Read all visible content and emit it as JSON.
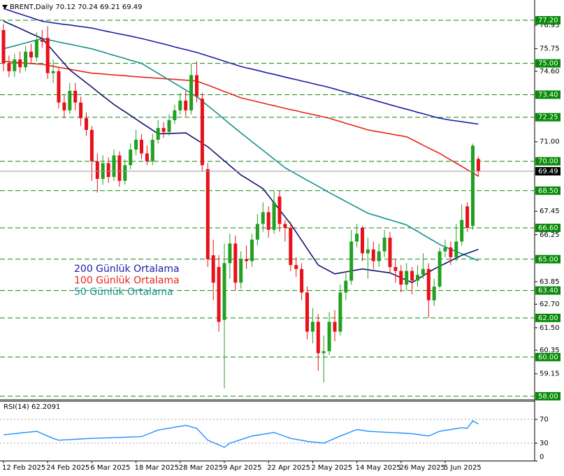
{
  "chart_data": [
    {
      "type": "candlestick",
      "title": "BRENT,Daily",
      "categories": [
        "12 Feb 2025",
        null,
        null,
        null,
        null,
        null,
        null,
        null,
        "24 Feb 2025",
        null,
        null,
        null,
        null,
        null,
        null,
        null,
        "6 Mar 2025",
        null,
        null,
        null,
        null,
        null,
        null,
        null,
        "18 Mar 2025",
        null,
        null,
        null,
        null,
        null,
        null,
        null,
        "28 Mar 2025",
        null,
        null,
        null,
        null,
        null,
        null,
        null,
        "9 Apr 2025",
        null,
        null,
        null,
        null,
        null,
        null,
        null,
        "22 Apr 2025",
        null,
        null,
        null,
        null,
        null,
        null,
        null,
        "2 May 2025",
        null,
        null,
        null,
        null,
        null,
        null,
        null,
        "14 May 2025",
        null,
        null,
        null,
        null,
        null,
        null,
        null,
        "26 May 2025",
        null,
        null,
        null,
        null,
        null,
        null,
        null,
        "5 Jun 2025",
        null,
        null,
        null,
        null,
        null,
        null
      ],
      "open": [
        76.7,
        75.0,
        74.6,
        75.2,
        74.8,
        75.6,
        75.3,
        76.2,
        76.3,
        74.5,
        74.6,
        73.0,
        72.6,
        73.6,
        73.0,
        72.2,
        71.6,
        70.0,
        69.1,
        69.9,
        69.2,
        70.3,
        69.0,
        69.8,
        70.6,
        71.1,
        70.4,
        70.0,
        71.1,
        71.7,
        71.5,
        72.1,
        72.6,
        73.1,
        72.6,
        74.4,
        73.2,
        69.6,
        65.2,
        64.6,
        61.9,
        64.8,
        65.8,
        63.8,
        65.0,
        64.9,
        66.0,
        66.8,
        67.4,
        66.5,
        68.2,
        66.8,
        66.6,
        64.7,
        64.5,
        63.3,
        61.3,
        61.8,
        60.2,
        60.3,
        61.8,
        61.3,
        63.3,
        63.9,
        65.9,
        66.6,
        65.3,
        65.5,
        64.9,
        65.4,
        66.1,
        64.6,
        64.4,
        63.7,
        64.4,
        63.9,
        64.2,
        64.5,
        62.9,
        63.6,
        65.4,
        65.6,
        65.1,
        65.9,
        67.7,
        66.7,
        70.12
      ],
      "high": [
        77.0,
        75.4,
        75.5,
        75.6,
        75.9,
        76.0,
        76.6,
        76.7,
        76.9,
        75.2,
        74.8,
        73.4,
        74.0,
        74.0,
        73.3,
        72.5,
        71.8,
        70.4,
        70.3,
        70.2,
        70.6,
        70.5,
        70.1,
        70.9,
        71.6,
        71.4,
        70.8,
        71.4,
        72.1,
        72.0,
        72.4,
        72.9,
        73.5,
        73.6,
        75.0,
        75.1,
        73.5,
        69.9,
        66.0,
        65.2,
        65.8,
        66.3,
        66.2,
        65.4,
        65.7,
        66.3,
        67.3,
        67.9,
        67.7,
        68.5,
        68.5,
        67.0,
        66.9,
        65.1,
        64.8,
        63.6,
        62.5,
        62.2,
        61.1,
        62.3,
        62.4,
        63.7,
        64.3,
        66.5,
        66.8,
        66.7,
        66.1,
        65.9,
        65.8,
        66.5,
        66.4,
        65.0,
        64.7,
        64.8,
        64.6,
        64.7,
        65.3,
        64.8,
        64.0,
        65.6,
        66.0,
        65.9,
        66.8,
        67.8,
        67.9,
        70.9,
        70.24
      ],
      "low": [
        74.6,
        74.3,
        74.3,
        74.5,
        74.6,
        75.0,
        75.1,
        75.8,
        74.2,
        74.0,
        72.7,
        72.2,
        72.4,
        72.6,
        71.8,
        71.3,
        69.0,
        68.4,
        68.8,
        68.9,
        69.0,
        68.7,
        68.8,
        69.6,
        70.3,
        70.1,
        69.8,
        69.8,
        70.9,
        71.2,
        71.3,
        71.9,
        72.4,
        72.3,
        72.4,
        73.0,
        69.5,
        64.6,
        62.9,
        61.3,
        58.4,
        64.0,
        63.4,
        63.5,
        64.5,
        64.6,
        65.7,
        66.4,
        66.1,
        66.3,
        66.4,
        65.9,
        64.4,
        64.1,
        62.9,
        60.9,
        60.7,
        59.3,
        58.7,
        60.1,
        60.8,
        61.1,
        62.9,
        63.7,
        65.6,
        64.9,
        64.0,
        64.5,
        64.6,
        65.1,
        64.3,
        63.8,
        63.3,
        63.4,
        63.2,
        63.6,
        64.0,
        62.0,
        62.6,
        63.5,
        65.1,
        64.7,
        64.9,
        65.7,
        66.4,
        66.5,
        69.21
      ],
      "close": [
        75.0,
        74.6,
        75.2,
        74.8,
        75.6,
        75.3,
        76.2,
        76.1,
        74.5,
        74.6,
        73.0,
        72.6,
        73.6,
        73.0,
        72.2,
        71.6,
        70.0,
        69.1,
        69.9,
        69.2,
        70.3,
        69.0,
        69.8,
        70.6,
        71.1,
        70.4,
        70.0,
        71.1,
        71.7,
        71.5,
        72.1,
        72.6,
        73.1,
        72.6,
        74.4,
        73.3,
        69.8,
        65.0,
        63.8,
        61.8,
        64.8,
        65.8,
        63.8,
        65.0,
        64.9,
        66.0,
        66.8,
        67.4,
        66.5,
        67.9,
        66.8,
        66.6,
        64.7,
        64.5,
        63.3,
        61.3,
        61.8,
        60.2,
        60.3,
        61.8,
        61.3,
        63.3,
        63.9,
        65.9,
        66.3,
        65.3,
        65.5,
        64.9,
        65.4,
        66.1,
        64.6,
        64.4,
        63.7,
        64.4,
        63.9,
        64.2,
        64.5,
        62.9,
        63.6,
        65.4,
        65.6,
        65.1,
        65.9,
        67.0,
        66.6,
        70.8,
        69.49
      ],
      "up_color": "#21a021",
      "down_color": "#e8101a",
      "series": [
        {
          "name": "200 Günlük Ortalama",
          "color": "#1c1ca8",
          "values": [
            77.8,
            77.71,
            77.61,
            77.52,
            77.43,
            77.34,
            77.24,
            77.15,
            77.11,
            77.07,
            77.03,
            76.99,
            76.96,
            76.92,
            76.88,
            76.84,
            76.8,
            76.74,
            76.68,
            76.62,
            76.56,
            76.5,
            76.45,
            76.39,
            76.33,
            76.27,
            76.2,
            76.13,
            76.06,
            75.99,
            75.92,
            75.84,
            75.77,
            75.7,
            75.63,
            75.56,
            75.47,
            75.38,
            75.29,
            75.2,
            75.11,
            75.02,
            74.93,
            74.84,
            74.77,
            74.71,
            74.64,
            74.57,
            74.5,
            74.44,
            74.37,
            74.3,
            74.23,
            74.17,
            74.1,
            74.04,
            73.97,
            73.9,
            73.84,
            73.77,
            73.69,
            73.61,
            73.53,
            73.45,
            73.37,
            73.29,
            73.21,
            73.13,
            73.05,
            72.97,
            72.89,
            72.81,
            72.73,
            72.66,
            72.58,
            72.5,
            72.43,
            72.35,
            72.27,
            72.2,
            72.15,
            72.1,
            72.06,
            72.02,
            71.98,
            71.94,
            71.9
          ]
        },
        {
          "name": "100 Günlük Ortalama",
          "color": "#e8231a",
          "values": [
            75.1,
            75.08,
            75.06,
            75.04,
            75.01,
            74.99,
            74.97,
            74.95,
            74.9,
            74.85,
            74.8,
            74.75,
            74.7,
            74.65,
            74.6,
            74.55,
            74.5,
            74.48,
            74.46,
            74.43,
            74.41,
            74.39,
            74.37,
            74.34,
            74.32,
            74.3,
            74.28,
            74.26,
            74.24,
            74.22,
            74.2,
            74.18,
            74.16,
            74.14,
            74.12,
            74.1,
            73.99,
            73.89,
            73.78,
            73.67,
            73.56,
            73.46,
            73.35,
            73.24,
            73.17,
            73.11,
            73.04,
            72.97,
            72.9,
            72.84,
            72.77,
            72.7,
            72.64,
            72.58,
            72.51,
            72.45,
            72.39,
            72.33,
            72.26,
            72.2,
            72.11,
            72.03,
            71.94,
            71.86,
            71.77,
            71.69,
            71.6,
            71.55,
            71.5,
            71.45,
            71.4,
            71.35,
            71.3,
            71.25,
            71.11,
            70.97,
            70.82,
            70.68,
            70.54,
            70.4,
            70.23,
            70.07,
            69.9,
            69.74,
            69.57,
            69.41,
            69.24
          ]
        },
        {
          "name": "50 Günlük Ortalama",
          "color": "#16908a",
          "values": [
            75.74,
            75.82,
            75.89,
            75.97,
            76.04,
            76.12,
            76.19,
            76.27,
            76.21,
            76.15,
            76.09,
            76.03,
            75.98,
            75.92,
            75.86,
            75.8,
            75.74,
            75.66,
            75.58,
            75.49,
            75.41,
            75.33,
            75.25,
            75.16,
            75.08,
            75.0,
            74.83,
            74.66,
            74.49,
            74.32,
            74.15,
            73.98,
            73.81,
            73.64,
            73.47,
            73.3,
            73.07,
            72.84,
            72.61,
            72.38,
            72.14,
            71.91,
            71.68,
            71.45,
            71.23,
            71.0,
            70.78,
            70.56,
            70.34,
            70.11,
            69.89,
            69.67,
            69.51,
            69.35,
            69.19,
            69.03,
            68.88,
            68.72,
            68.56,
            68.4,
            68.25,
            68.1,
            67.95,
            67.8,
            67.65,
            67.5,
            67.35,
            67.26,
            67.18,
            67.09,
            67.01,
            66.92,
            66.84,
            66.75,
            66.58,
            66.42,
            66.25,
            66.08,
            65.92,
            65.75,
            65.63,
            65.51,
            65.39,
            65.28,
            65.16,
            65.04,
            64.92
          ]
        },
        {
          "color": "#12126e",
          "values": [
            77.16,
            77.03,
            76.91,
            76.78,
            76.65,
            76.52,
            76.4,
            76.27,
            75.95,
            75.63,
            75.31,
            74.99,
            74.67,
            74.45,
            74.23,
            74.01,
            73.79,
            73.56,
            73.34,
            73.12,
            72.9,
            72.71,
            72.53,
            72.34,
            72.15,
            71.96,
            71.78,
            71.59,
            71.4,
            71.41,
            71.42,
            71.43,
            71.44,
            71.45,
            71.27,
            71.1,
            70.92,
            70.74,
            70.5,
            70.26,
            70.02,
            69.78,
            69.54,
            69.3,
            69.13,
            68.95,
            68.78,
            68.6,
            68.24,
            67.88,
            67.52,
            67.16,
            66.8,
            66.38,
            65.96,
            65.54,
            65.12,
            64.7,
            64.55,
            64.4,
            64.25,
            64.3,
            64.35,
            64.4,
            64.45,
            64.5,
            64.46,
            64.42,
            64.38,
            64.34,
            64.3,
            64.18,
            64.05,
            63.93,
            63.8,
            63.98,
            64.15,
            64.33,
            64.5,
            64.64,
            64.78,
            64.92,
            65.06,
            65.2,
            65.3,
            65.4,
            65.5
          ]
        }
      ],
      "ylim": [
        57.89,
        77.95
      ],
      "yticks": [
        76.95,
        75.75,
        {
          "value": 74.6,
          "label": "74.60"
        },
        {
          "value": 71,
          "label": "71.00"
        },
        67.45,
        66.25,
        63.85,
        {
          "value": 62.7,
          "label": "62.70"
        },
        {
          "value": 61.5,
          "label": "61.50"
        },
        60.35,
        59.15
      ],
      "levels": [
        {
          "value": 77.2,
          "label": "77.20"
        },
        {
          "value": 75,
          "label": "75.00"
        },
        {
          "value": 73.4,
          "label": "73.40"
        },
        72.25,
        {
          "value": 70,
          "label": "70.00"
        },
        {
          "value": 68.5,
          "label": "68.50"
        },
        {
          "value": 66.6,
          "label": "66.60"
        },
        {
          "value": 65,
          "label": "65.00"
        },
        {
          "value": 63.4,
          "label": "63.40"
        },
        {
          "value": 62,
          "label": "62.00"
        },
        {
          "value": 60,
          "label": "60.00"
        },
        {
          "value": 58,
          "label": "58.00"
        }
      ],
      "level_color": "#0a8a0a"
    },
    {
      "type": "line",
      "title": "RSI(14)",
      "color": "#1e90ff",
      "values": [
        44,
        45,
        46,
        47,
        48,
        49,
        50,
        46,
        42,
        38,
        35,
        35.5,
        36,
        36.5,
        37,
        37.5,
        38,
        38.3,
        38.7,
        39,
        39.3,
        39.7,
        40,
        40.3,
        40.7,
        41,
        44.7,
        48.3,
        52,
        53.6,
        55.2,
        56.8,
        58.4,
        60,
        57.5,
        55,
        45,
        35,
        31,
        27,
        23,
        30,
        33,
        36,
        39,
        42,
        43.5,
        45,
        46.5,
        48,
        44.7,
        41.3,
        38,
        36.3,
        34.7,
        33,
        32,
        31,
        30,
        34,
        38,
        42,
        45.7,
        49.3,
        53,
        51.5,
        50,
        49.5,
        49,
        48.5,
        48,
        47.5,
        47,
        46.5,
        46,
        44.7,
        43.3,
        42,
        46,
        50,
        51.5,
        53,
        54.5,
        56,
        55,
        67.5,
        62.2091
      ],
      "ylim": [
        0,
        100
      ],
      "yticks": [
        0,
        30,
        70
      ],
      "grid": true
    }
  ]
}
